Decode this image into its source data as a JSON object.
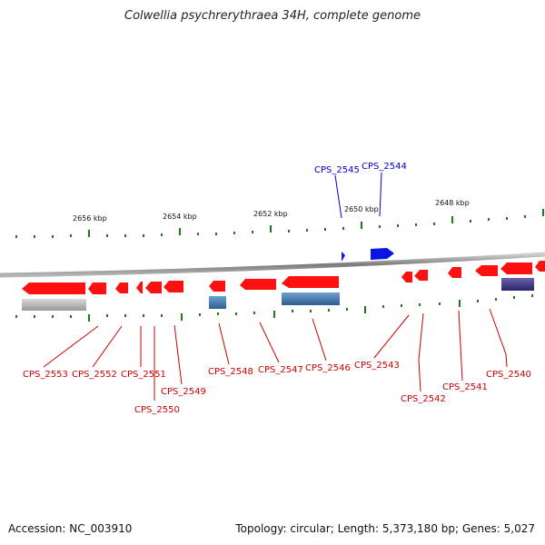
{
  "title": "Colwellia psychrerythraea 34H, complete genome",
  "footer": {
    "accession": "Accession: NC_003910",
    "stats": "Topology: circular; Length: 5,373,180 bp; Genes: 5,027"
  },
  "ruler": [
    "2656 kbp",
    "2654 kbp",
    "2652 kbp",
    "2650 kbp",
    "2648 kbp"
  ],
  "genes": {
    "forward": [
      "CPS_2545",
      "CPS_2544"
    ],
    "reverse": [
      "CPS_2553",
      "CPS_2552",
      "CPS_2551",
      "CPS_2550",
      "CPS_2549",
      "CPS_2548",
      "CPS_2547",
      "CPS_2546",
      "CPS_2543",
      "CPS_2542",
      "CPS_2541",
      "CPS_2540"
    ]
  },
  "colors": {
    "forward_gene": "#0a14e6",
    "reverse_gene": "#ff1010",
    "backbone": "#8a8a8a",
    "tick": "#1c7a1c",
    "label_red": "#cc0000",
    "label_blue": "#0000cc"
  }
}
